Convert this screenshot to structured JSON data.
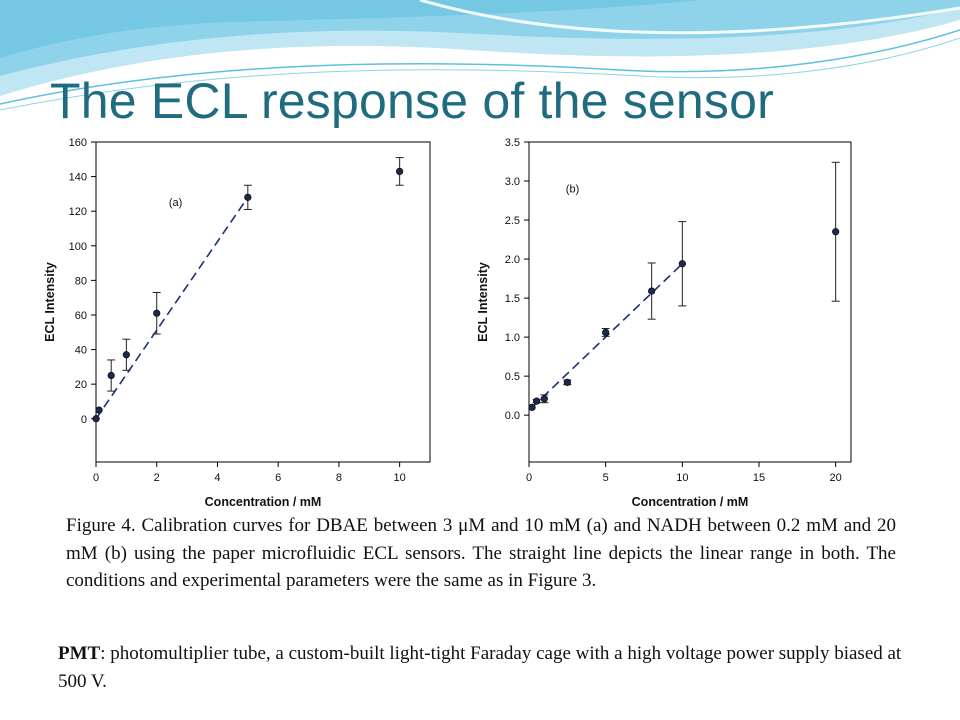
{
  "slide": {
    "title": "The ECL response of the sensor",
    "caption": "Figure 4. Calibration curves for DBAE between 3 μM and 10 mM (a) and NADH between 0.2 mM and 20 mM (b) using the paper microfluidic ECL sensors. The straight line depicts the linear range in both. The conditions and experimental parameters were the same as in Figure 3.",
    "note_term": "PMT",
    "note_text": ": photomultiplier tube, a custom-built light-tight Faraday cage with a high voltage power supply biased at 500 V.",
    "colors": {
      "title": "#1f6b80",
      "wave_light": "#bfe6f2",
      "wave_mid": "#7fcde6",
      "marker": "#1b2a4a",
      "fit_line": "#1c2f7a"
    }
  },
  "chart_data": [
    {
      "type": "scatter",
      "panel_label": "(a)",
      "xlabel": "Concentration / mM",
      "ylabel": "ECL Intensity",
      "xlim": [
        0,
        11
      ],
      "ylim": [
        -25,
        160
      ],
      "xticks": [
        0,
        2,
        4,
        6,
        8,
        10
      ],
      "yticks": [
        0,
        20,
        40,
        60,
        80,
        100,
        120,
        140,
        160
      ],
      "grid": false,
      "points": [
        {
          "x": 0.003,
          "y": 0,
          "err": 0
        },
        {
          "x": 0.1,
          "y": 5,
          "err": 0
        },
        {
          "x": 0.5,
          "y": 25,
          "err": 9
        },
        {
          "x": 1,
          "y": 37,
          "err": 9
        },
        {
          "x": 2,
          "y": 61,
          "err": 12
        },
        {
          "x": 5,
          "y": 128,
          "err": 7
        },
        {
          "x": 10,
          "y": 143,
          "err": 8
        }
      ],
      "fit_line": {
        "x": [
          0,
          5
        ],
        "y": [
          0,
          128
        ],
        "style": "dashed"
      }
    },
    {
      "type": "scatter",
      "panel_label": "(b)",
      "xlabel": "Concentration / mM",
      "ylabel": "ECL Intensity",
      "xlim": [
        0,
        21
      ],
      "ylim": [
        -0.6,
        3.5
      ],
      "xticks": [
        0,
        5,
        10,
        15,
        20
      ],
      "yticks": [
        0.0,
        0.5,
        1.0,
        1.5,
        2.0,
        2.5,
        3.0,
        3.5
      ],
      "ytick_labels": [
        "0.0",
        "0.5",
        "1.0",
        "1.5",
        "2.0",
        "2.5",
        "3.0",
        "3.5"
      ],
      "grid": false,
      "points": [
        {
          "x": 0.2,
          "y": 0.1,
          "err": 0
        },
        {
          "x": 0.5,
          "y": 0.18,
          "err": 0.02
        },
        {
          "x": 1,
          "y": 0.21,
          "err": 0.05
        },
        {
          "x": 2.5,
          "y": 0.42,
          "err": 0.03
        },
        {
          "x": 5,
          "y": 1.06,
          "err": 0.05
        },
        {
          "x": 8,
          "y": 1.59,
          "err": 0.36
        },
        {
          "x": 10,
          "y": 1.94,
          "err": 0.54
        },
        {
          "x": 20,
          "y": 2.35,
          "err": 0.89
        }
      ],
      "fit_line": {
        "x": [
          0.2,
          10
        ],
        "y": [
          0.1,
          1.94
        ],
        "style": "dashed"
      }
    }
  ]
}
